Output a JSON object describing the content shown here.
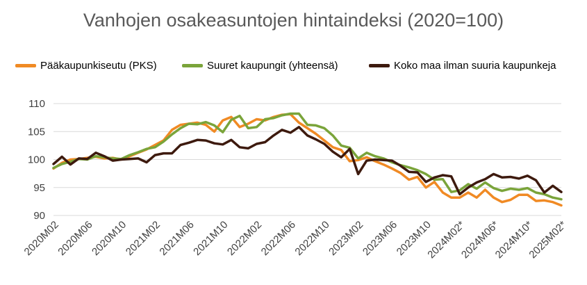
{
  "chart_data": {
    "type": "line",
    "title": "Vanhojen osakeasuntojen hintaindeksi (2020=100)",
    "xlabel": "",
    "ylabel": "",
    "ylim": [
      90,
      110
    ],
    "yticks": [
      "90",
      "95",
      "100",
      "105",
      "110"
    ],
    "xtick_labels": [
      "2020M02",
      "2020M06",
      "2020M10",
      "2021M02",
      "2021M06",
      "2021M10",
      "2022M02",
      "2022M06",
      "2022M10",
      "2023M02",
      "2023M06",
      "2023M10",
      "2024M02*",
      "2024M06*",
      "2024M10*",
      "2025M02*"
    ],
    "grid": true,
    "legend_position": "top",
    "x": [
      "2020M02",
      "2020M03",
      "2020M04",
      "2020M05",
      "2020M06",
      "2020M07",
      "2020M08",
      "2020M09",
      "2020M10",
      "2020M11",
      "2020M12",
      "2021M01",
      "2021M02",
      "2021M03",
      "2021M04",
      "2021M05",
      "2021M06",
      "2021M07",
      "2021M08",
      "2021M09",
      "2021M10",
      "2021M11",
      "2021M12",
      "2022M01",
      "2022M02",
      "2022M03",
      "2022M04",
      "2022M05",
      "2022M06",
      "2022M07",
      "2022M08",
      "2022M09",
      "2022M10",
      "2022M11",
      "2022M12",
      "2023M01",
      "2023M02",
      "2023M03",
      "2023M04",
      "2023M05",
      "2023M06",
      "2023M07",
      "2023M08",
      "2023M09",
      "2023M10",
      "2023M11",
      "2023M12",
      "2024M01",
      "2024M02*",
      "2024M03*",
      "2024M04*",
      "2024M05*",
      "2024M06*",
      "2024M07*",
      "2024M08*",
      "2024M09*",
      "2024M10*",
      "2024M11*",
      "2024M12*",
      "2025M01*",
      "2025M02*"
    ],
    "series": [
      {
        "name": "Pääkaupunkiseutu (PKS)",
        "color": "#F08A24",
        "values": [
          98.4,
          99.4,
          100.0,
          100.1,
          100.3,
          100.5,
          100.2,
          100.3,
          100.0,
          100.6,
          101.2,
          101.8,
          102.6,
          103.4,
          105.3,
          106.2,
          106.4,
          106.6,
          106.2,
          105.0,
          107.0,
          107.6,
          105.8,
          106.4,
          107.2,
          107.0,
          107.6,
          108.0,
          108.1,
          106.6,
          105.6,
          104.6,
          103.4,
          102.2,
          101.7,
          99.7,
          99.9,
          100.4,
          99.7,
          99.1,
          98.4,
          97.6,
          96.4,
          96.9,
          95.0,
          96.0,
          94.1,
          93.2,
          93.2,
          94.1,
          93.2,
          94.6,
          93.2,
          92.4,
          92.8,
          93.7,
          93.7,
          92.6,
          92.7,
          92.4,
          91.8
        ]
      },
      {
        "name": "Suuret kaupungit (yhteensä)",
        "color": "#7AA43A",
        "values": [
          98.5,
          99.2,
          99.6,
          100.1,
          100.0,
          100.6,
          100.4,
          100.2,
          100.1,
          100.8,
          101.3,
          101.9,
          102.2,
          103.2,
          104.5,
          105.6,
          106.4,
          106.3,
          106.7,
          106.1,
          104.9,
          107.1,
          107.8,
          105.6,
          105.8,
          107.2,
          107.4,
          107.9,
          108.2,
          108.2,
          106.2,
          106.1,
          105.6,
          104.3,
          102.5,
          102.1,
          100.2,
          101.2,
          100.6,
          100.2,
          99.5,
          99.0,
          98.6,
          98.1,
          97.4,
          96.4,
          96.5,
          94.2,
          94.5,
          95.6,
          94.8,
          95.9,
          94.9,
          94.4,
          94.8,
          94.6,
          94.9,
          94.1,
          93.8,
          93.2,
          92.9
        ]
      },
      {
        "name": "Koko maa ilman suuria kaupunkeja",
        "color": "#3D1A0E",
        "values": [
          99.2,
          100.5,
          99.1,
          100.2,
          100.1,
          101.2,
          100.6,
          99.8,
          100.0,
          100.1,
          100.2,
          99.5,
          100.8,
          101.1,
          101.1,
          102.6,
          103.0,
          103.5,
          103.4,
          102.9,
          102.7,
          103.5,
          102.2,
          102.0,
          102.8,
          103.1,
          104.3,
          105.3,
          104.8,
          105.8,
          104.3,
          103.6,
          102.8,
          101.4,
          100.4,
          101.9,
          97.4,
          99.8,
          100.0,
          99.9,
          99.8,
          98.9,
          97.8,
          97.7,
          96.0,
          96.8,
          97.2,
          97.0,
          93.8,
          95.0,
          95.9,
          96.5,
          97.4,
          96.8,
          96.9,
          96.6,
          97.1,
          96.3,
          94.1,
          95.3,
          94.2
        ]
      }
    ]
  }
}
